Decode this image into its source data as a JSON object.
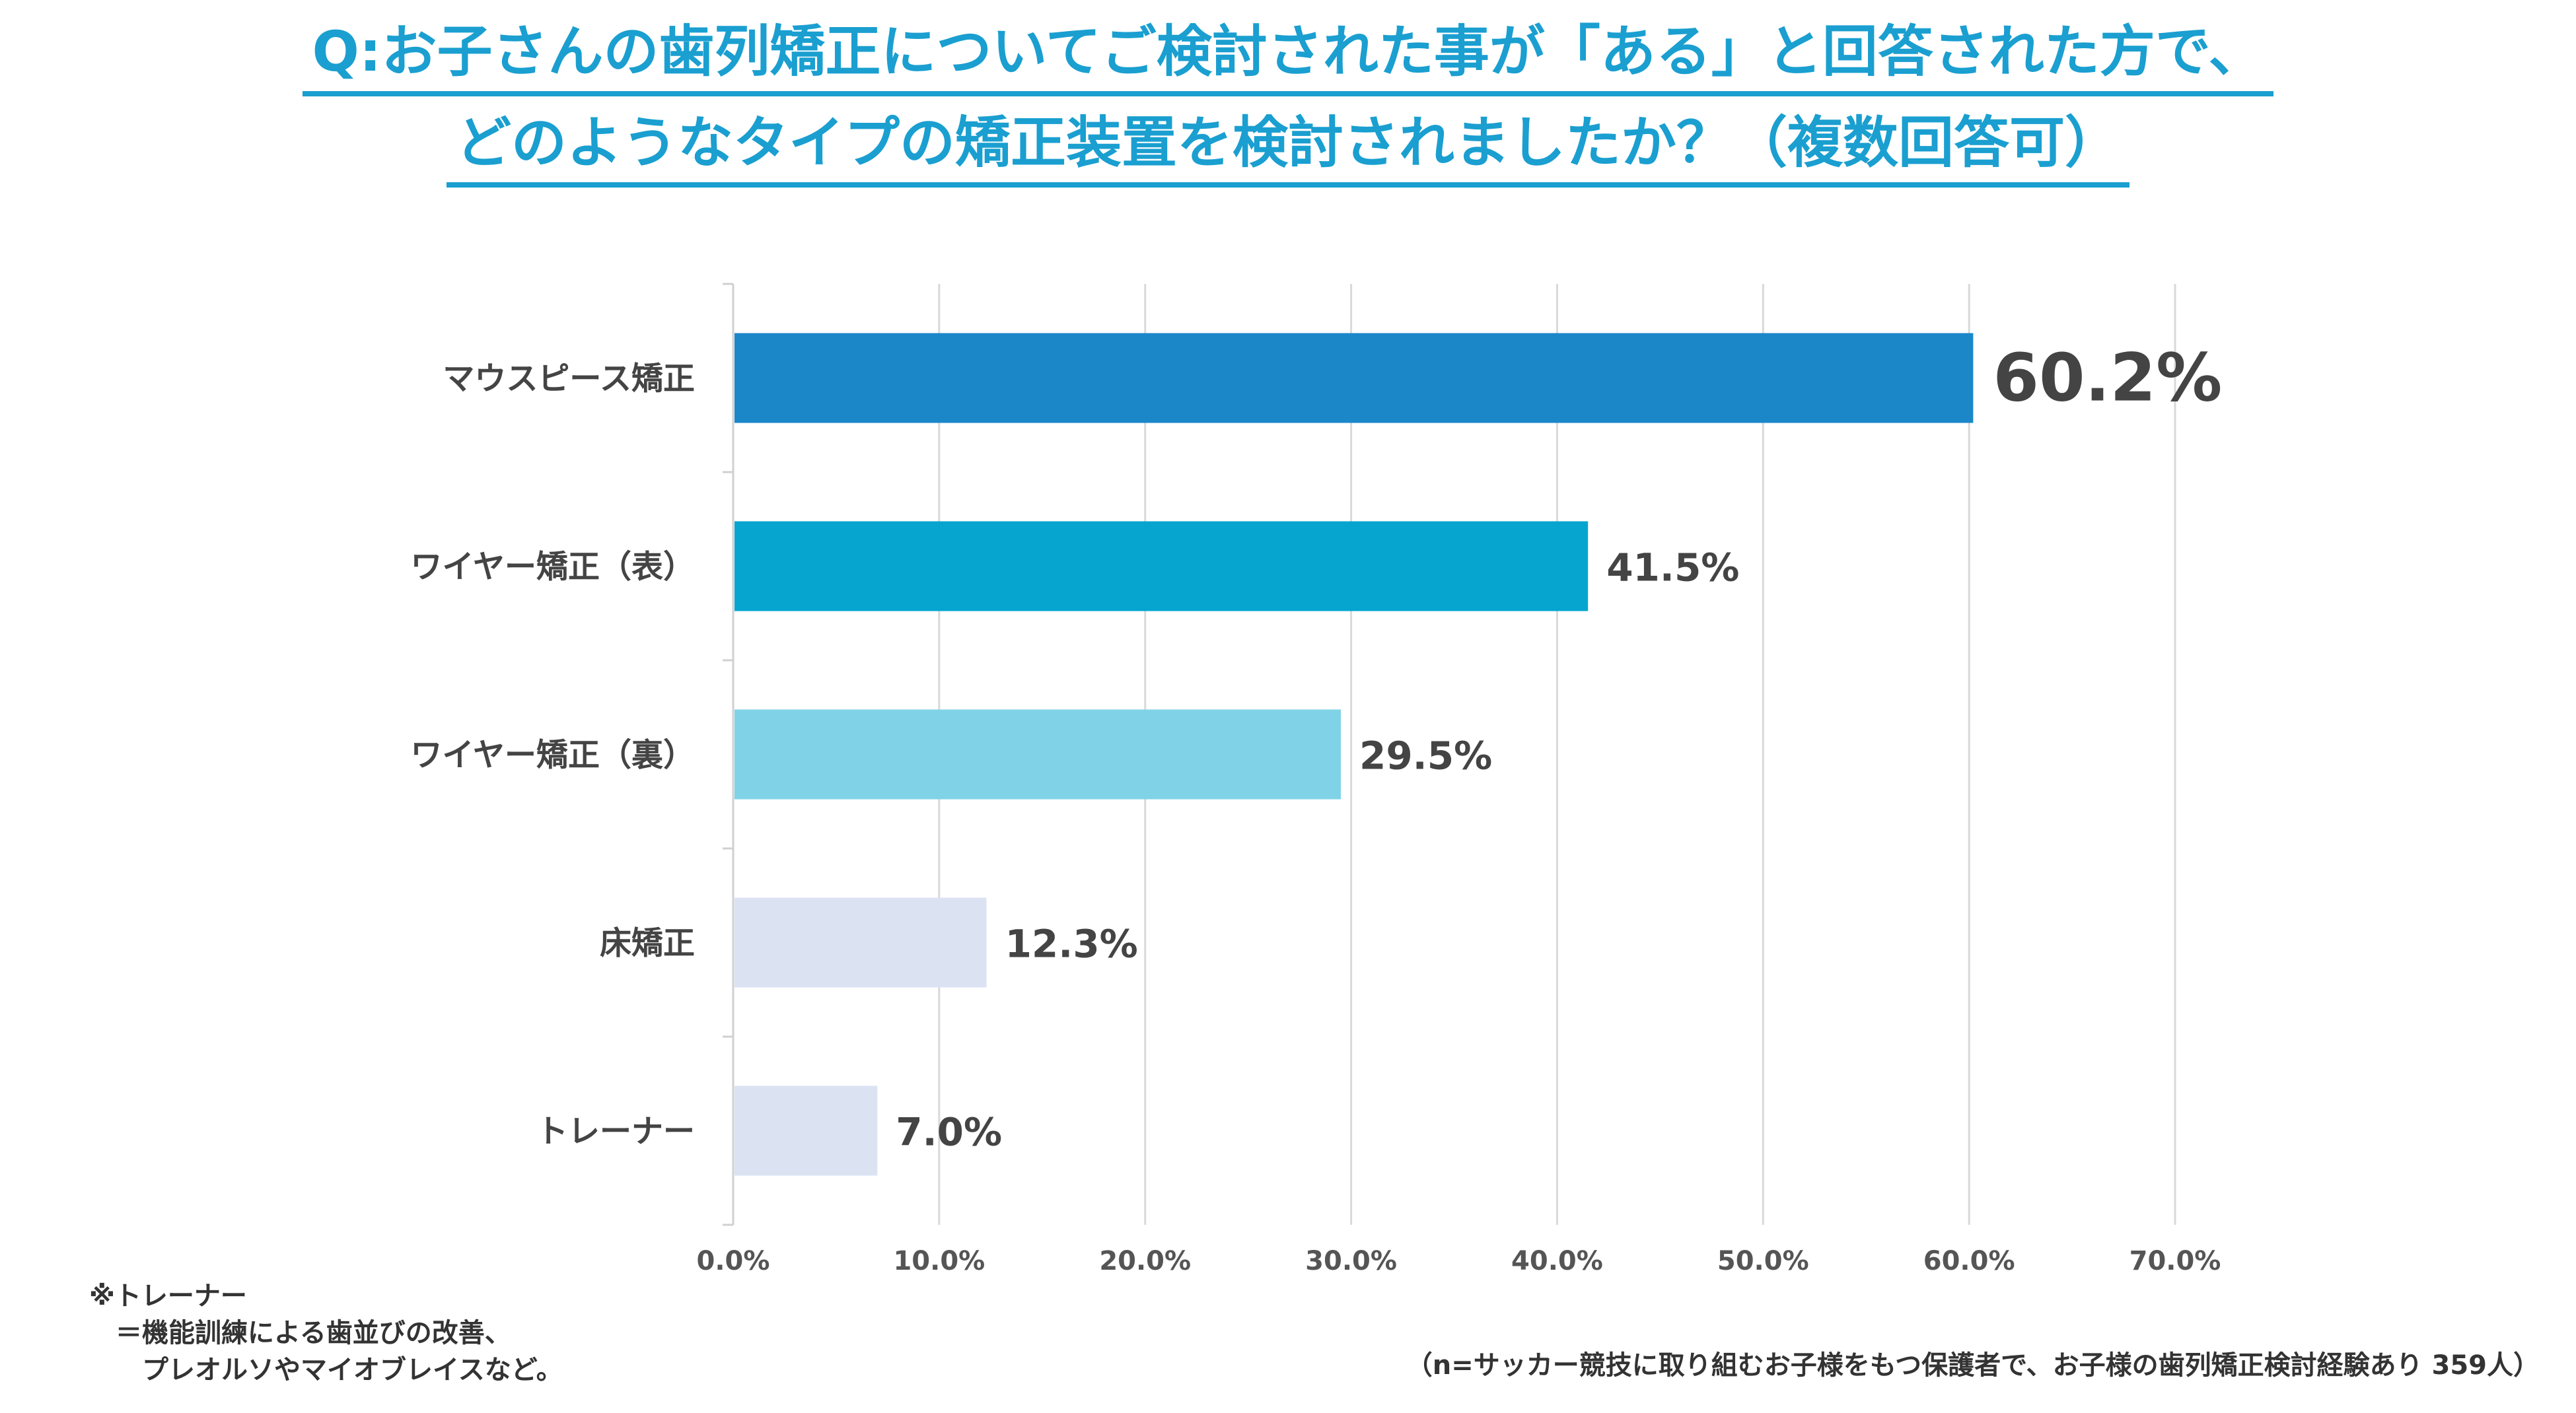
{
  "title": {
    "line1": "Q:お子さんの歯列矯正についてご検討された事が「ある」と回答された方で、",
    "line2": "どのようなタイプの矯正装置を検討されましたか？（複数回答可）"
  },
  "chart_data": {
    "type": "bar",
    "orientation": "horizontal",
    "categories": [
      "マウスピース矯正",
      "ワイヤー矯正（表）",
      "ワイヤー矯正（裏）",
      "床矯正",
      "トレーナー"
    ],
    "values": [
      60.2,
      41.5,
      29.5,
      12.3,
      7.0
    ],
    "value_labels": [
      "60.2%",
      "41.5%",
      "29.5%",
      "12.3%",
      "7.0%"
    ],
    "xlim": [
      0,
      70
    ],
    "x_ticks": [
      0,
      10,
      20,
      30,
      40,
      50,
      60,
      70
    ],
    "x_tick_labels": [
      "0.0%",
      "10.0%",
      "20.0%",
      "30.0%",
      "40.0%",
      "50.0%",
      "60.0%",
      "70.0%"
    ],
    "grid": true,
    "bar_colors": [
      "#1b87c9",
      "#06a5cf",
      "#80d3e6",
      "#dbe3f3",
      "#dbe3f3"
    ]
  },
  "notes": {
    "trainer_note": "※トレーナー\n　＝機能訓練による歯並びの改善、\n　　プレオルソやマイオブレイスなど。",
    "sample_note": "（n=サッカー競技に取り組むお子様をもつ保護者で、お子様の歯列矯正検討経験あり 359人）"
  }
}
